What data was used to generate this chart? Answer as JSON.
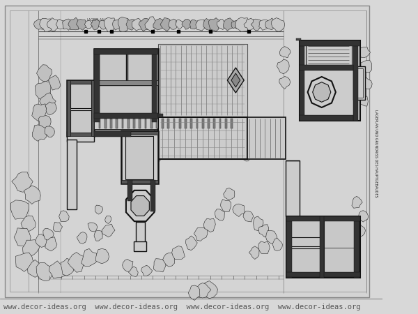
{
  "bg_color": "#d8d8d8",
  "paper_color": "#d0d0d0",
  "line_color": "#111111",
  "thin_line_color": "#333333",
  "medium_line_color": "#222222",
  "tree_fill": "#bbbbbb",
  "tree_edge": "#111111",
  "watermark_text": "www.decor-ideas.org",
  "watermark_color": "#555555",
  "watermark_fontsize": 7.5,
  "fig_width": 6.0,
  "fig_height": 4.5,
  "dpi": 100,
  "vertical_label": "LAGEPLAN UND GRUNDRISS DES HAUPTGEBAUDES"
}
